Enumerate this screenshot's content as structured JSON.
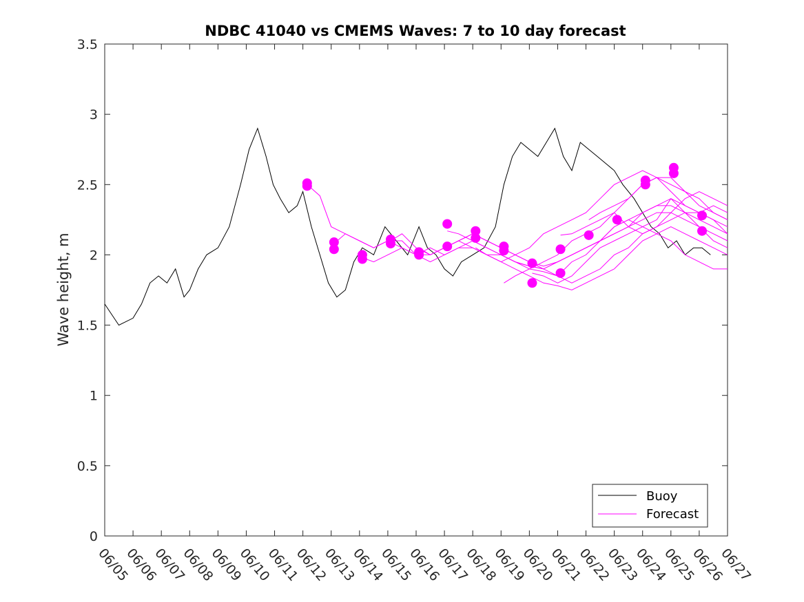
{
  "chart_data": {
    "type": "line",
    "title": "NDBC 41040 vs CMEMS Waves: 7 to 10 day forecast",
    "xlabel": "",
    "ylabel": "Wave height, m",
    "x_ticks": [
      "06/05",
      "06/06",
      "06/07",
      "06/08",
      "06/09",
      "06/10",
      "06/11",
      "06/12",
      "06/13",
      "06/14",
      "06/15",
      "06/16",
      "06/17",
      "06/18",
      "06/19",
      "06/20",
      "06/21",
      "06/22",
      "06/23",
      "06/24",
      "06/25",
      "06/26",
      "06/27"
    ],
    "xlim": [
      0,
      22
    ],
    "ylim": [
      0,
      3.5
    ],
    "y_ticks": [
      "0",
      "0.5",
      "1",
      "1.5",
      "2",
      "2.5",
      "3",
      "3.5"
    ],
    "y_tick_values": [
      0,
      0.5,
      1,
      1.5,
      2,
      2.5,
      3,
      3.5
    ],
    "grid": false,
    "legend_position": "bottom-right",
    "legend": [
      "Buoy",
      "Forecast"
    ],
    "colors": {
      "Buoy": "#000000",
      "Forecast": "#ff00ff"
    },
    "buoy_series": {
      "name": "Buoy",
      "x": [
        0,
        0.5,
        1,
        1.3,
        1.6,
        1.9,
        2.2,
        2.5,
        2.8,
        3.0,
        3.3,
        3.6,
        4.0,
        4.4,
        4.8,
        5.1,
        5.4,
        5.7,
        5.95,
        6.2,
        6.5,
        6.8,
        7.0,
        7.3,
        7.6,
        7.9,
        8.2,
        8.5,
        8.8,
        9.1,
        9.5,
        9.9,
        10.3,
        10.7,
        11.1,
        11.4,
        11.7,
        12.0,
        12.3,
        12.6,
        13.0,
        13.4,
        13.8,
        14.1,
        14.4,
        14.7,
        15.0,
        15.3,
        15.6,
        15.9,
        16.2,
        16.5,
        16.8,
        17.1,
        17.4,
        17.7,
        18.0,
        18.3,
        18.7,
        19.0,
        19.3,
        19.6,
        19.9,
        20.2,
        20.5,
        20.8,
        21.1,
        21.4
      ],
      "y": [
        1.65,
        1.5,
        1.55,
        1.65,
        1.8,
        1.85,
        1.8,
        1.9,
        1.7,
        1.75,
        1.9,
        2.0,
        2.05,
        2.2,
        2.5,
        2.75,
        2.9,
        2.7,
        2.5,
        2.4,
        2.3,
        2.35,
        2.45,
        2.2,
        2.0,
        1.8,
        1.7,
        1.75,
        1.95,
        2.05,
        2.0,
        2.2,
        2.1,
        2.0,
        2.2,
        2.05,
        2.0,
        1.9,
        1.85,
        1.95,
        2.0,
        2.05,
        2.2,
        2.5,
        2.7,
        2.8,
        2.75,
        2.7,
        2.8,
        2.9,
        2.7,
        2.6,
        2.8,
        2.75,
        2.7,
        2.65,
        2.6,
        2.5,
        2.4,
        2.3,
        2.2,
        2.15,
        2.05,
        2.1,
        2.0,
        2.05,
        2.05,
        2.0
      ]
    },
    "forecast_series": [
      {
        "x": [
          7.15,
          7.6,
          8.0,
          8.5,
          9.0,
          9.5,
          10.0,
          10.5,
          11.0,
          11.5,
          12.0,
          12.5,
          13.0,
          13.5,
          14.0,
          14.5,
          15.0,
          15.5,
          16.0,
          16.5,
          17.0,
          17.5,
          18.0,
          18.5,
          19.0,
          19.5,
          20.0,
          20.5,
          21.0,
          21.5,
          22.0
        ],
        "y": [
          2.5,
          2.42,
          2.2,
          2.15,
          2.1,
          2.05,
          2.1,
          2.1,
          2.0,
          2.05,
          2.0,
          2.05,
          2.05,
          2.0,
          1.95,
          2.0,
          2.05,
          2.15,
          2.2,
          2.25,
          2.3,
          2.4,
          2.5,
          2.55,
          2.6,
          2.55,
          2.45,
          2.35,
          2.3,
          2.25,
          2.2
        ]
      },
      {
        "x": [
          8.1,
          8.5,
          9.0,
          9.5,
          10.0,
          10.5,
          11.0,
          11.5,
          12.0,
          12.5,
          13.0,
          13.5,
          14.0,
          14.5,
          15.0,
          15.5,
          16.0,
          16.5,
          17.0,
          17.5,
          18.0,
          18.5,
          19.0,
          19.5,
          20.0,
          20.5,
          21.0,
          21.5,
          22.0
        ],
        "y": [
          2.08,
          2.15,
          2.1,
          2.05,
          2.1,
          2.05,
          2.0,
          1.95,
          2.0,
          2.05,
          2.1,
          2.05,
          2.0,
          1.95,
          1.9,
          1.95,
          2.0,
          2.1,
          2.15,
          2.2,
          2.3,
          2.4,
          2.5,
          2.55,
          2.55,
          2.45,
          2.35,
          2.3,
          2.25
        ]
      },
      {
        "x": [
          9.1,
          9.5,
          10.0,
          10.5,
          11.0,
          11.5,
          12.0,
          12.5,
          13.0,
          13.5,
          14.0,
          14.5,
          15.0,
          15.5,
          16.0,
          16.5,
          17.0,
          17.5,
          18.0,
          18.5,
          19.0,
          19.5,
          20.0,
          20.5,
          21.0,
          21.5,
          22.0
        ],
        "y": [
          1.98,
          1.95,
          2.0,
          2.05,
          2.0,
          2.0,
          2.05,
          2.1,
          2.05,
          2.0,
          2.0,
          1.95,
          1.92,
          1.9,
          1.95,
          2.0,
          2.05,
          2.1,
          2.15,
          2.2,
          2.3,
          2.35,
          2.4,
          2.3,
          2.2,
          2.1,
          2.05
        ]
      },
      {
        "x": [
          10.1,
          10.5,
          11.0,
          11.5,
          12.0,
          12.5,
          13.0,
          13.5,
          14.0,
          14.5,
          15.0,
          15.5,
          16.0,
          16.5,
          17.0,
          17.5,
          18.0,
          18.5,
          19.0,
          19.5,
          20.0,
          20.5,
          21.0,
          21.5,
          22.0
        ],
        "y": [
          2.1,
          2.15,
          2.05,
          2.0,
          2.05,
          2.1,
          2.15,
          2.1,
          2.05,
          2.0,
          1.95,
          1.9,
          1.85,
          1.95,
          2.0,
          2.1,
          2.2,
          2.25,
          2.2,
          2.15,
          2.1,
          2.0,
          1.95,
          1.9,
          1.9
        ]
      },
      {
        "x": [
          11.1,
          11.5,
          12.0,
          12.5,
          13.0,
          13.5,
          14.0,
          14.5,
          15.0,
          15.5,
          16.0,
          16.5,
          17.0,
          17.5,
          18.0,
          18.5,
          19.0,
          19.5,
          20.0,
          20.5,
          21.0,
          21.5,
          22.0
        ],
        "y": [
          2.05,
          2.0,
          2.05,
          2.1,
          2.15,
          2.1,
          2.05,
          2.0,
          1.95,
          1.92,
          1.95,
          2.0,
          2.05,
          2.1,
          2.2,
          2.25,
          2.3,
          2.35,
          2.35,
          2.3,
          2.25,
          2.2,
          2.15
        ]
      },
      {
        "x": [
          12.1,
          12.5,
          13.0,
          13.5,
          14.0,
          14.5,
          15.0,
          15.5,
          16.0,
          16.5,
          17.0,
          17.5,
          18.0,
          18.5,
          19.0,
          19.5,
          20.0,
          20.5,
          21.0,
          21.5,
          22.0
        ],
        "y": [
          2.17,
          2.15,
          2.1,
          2.05,
          2.0,
          1.95,
          1.92,
          1.9,
          1.95,
          2.0,
          2.05,
          2.1,
          2.15,
          2.2,
          2.25,
          2.3,
          2.3,
          2.25,
          2.2,
          2.15,
          2.1
        ]
      },
      {
        "x": [
          13.1,
          13.5,
          14.0,
          14.5,
          15.0,
          15.5,
          16.0,
          16.5,
          17.0,
          17.5,
          18.0,
          18.5,
          19.0,
          19.5,
          20.0,
          20.5,
          21.0,
          21.5,
          22.0
        ],
        "y": [
          2.05,
          2.0,
          1.95,
          1.9,
          1.85,
          1.8,
          1.78,
          1.75,
          1.8,
          1.85,
          1.9,
          2.0,
          2.1,
          2.15,
          2.2,
          2.15,
          2.1,
          2.05,
          2.0
        ]
      },
      {
        "x": [
          14.1,
          14.5,
          15.0,
          15.5,
          16.0,
          16.5,
          17.0,
          17.5,
          18.0,
          18.5,
          19.0,
          19.5,
          20.0,
          20.5,
          21.0,
          21.5,
          22.0
        ],
        "y": [
          1.8,
          1.85,
          1.9,
          1.88,
          1.85,
          1.8,
          1.85,
          1.9,
          2.0,
          2.05,
          2.15,
          2.2,
          2.25,
          2.3,
          2.3,
          2.35,
          2.3
        ]
      },
      {
        "x": [
          15.1,
          15.5,
          16.0,
          16.5,
          17.0,
          17.5,
          18.0,
          18.5,
          19.0,
          19.5,
          20.0,
          20.5,
          21.0,
          21.5,
          22.0
        ],
        "y": [
          1.87,
          1.85,
          1.8,
          1.85,
          1.95,
          2.05,
          2.1,
          2.15,
          2.2,
          2.25,
          2.4,
          2.35,
          2.3,
          2.25,
          2.15
        ]
      },
      {
        "x": [
          16.1,
          16.5,
          17.0,
          17.5,
          18.0,
          18.5,
          19.0,
          19.5,
          20.0,
          20.5,
          21.0,
          21.5,
          22.0
        ],
        "y": [
          2.14,
          2.15,
          2.2,
          2.25,
          2.3,
          2.2,
          2.15,
          2.2,
          2.3,
          2.4,
          2.45,
          2.4,
          2.35
        ]
      },
      {
        "x": [
          17.1,
          17.5,
          18.0,
          18.5,
          19.0,
          19.5,
          20.0,
          20.5,
          21.0,
          21.5,
          22.0
        ],
        "y": [
          2.25,
          2.3,
          2.35,
          2.4,
          2.5,
          2.55,
          2.5,
          2.45,
          2.4,
          2.3,
          2.25
        ]
      }
    ],
    "forecast_markers": [
      {
        "x": 7.15,
        "y": 2.51
      },
      {
        "x": 7.15,
        "y": 2.49
      },
      {
        "x": 8.1,
        "y": 2.09
      },
      {
        "x": 8.1,
        "y": 2.04
      },
      {
        "x": 9.1,
        "y": 2.0
      },
      {
        "x": 9.1,
        "y": 1.97
      },
      {
        "x": 10.1,
        "y": 2.11
      },
      {
        "x": 10.1,
        "y": 2.08
      },
      {
        "x": 11.1,
        "y": 2.02
      },
      {
        "x": 11.1,
        "y": 2.0
      },
      {
        "x": 12.1,
        "y": 2.22
      },
      {
        "x": 12.1,
        "y": 2.06
      },
      {
        "x": 13.1,
        "y": 2.17
      },
      {
        "x": 13.1,
        "y": 2.12
      },
      {
        "x": 14.1,
        "y": 2.06
      },
      {
        "x": 14.1,
        "y": 2.03
      },
      {
        "x": 15.1,
        "y": 1.94
      },
      {
        "x": 15.1,
        "y": 1.8
      },
      {
        "x": 16.1,
        "y": 2.04
      },
      {
        "x": 16.1,
        "y": 1.87
      },
      {
        "x": 17.1,
        "y": 2.14
      },
      {
        "x": 18.1,
        "y": 2.25
      },
      {
        "x": 19.1,
        "y": 2.53
      },
      {
        "x": 19.1,
        "y": 2.5
      },
      {
        "x": 20.1,
        "y": 2.62
      },
      {
        "x": 20.1,
        "y": 2.58
      },
      {
        "x": 21.1,
        "y": 2.28
      },
      {
        "x": 21.1,
        "y": 2.17
      }
    ]
  }
}
